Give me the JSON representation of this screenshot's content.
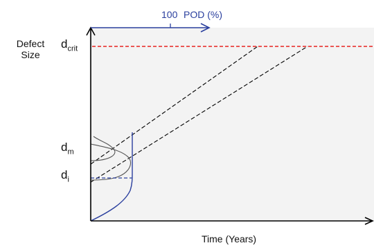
{
  "diagram": {
    "y_axis_label_line1": "Defect",
    "y_axis_label_line2": "Size",
    "x_axis_label": "Time (Years)",
    "top_axis_value": "100",
    "top_axis_label": "POD (%)",
    "d_crit": {
      "base": "d",
      "sub": "crit"
    },
    "d_m": {
      "base": "d",
      "sub": "m"
    },
    "d_i": {
      "base": "d",
      "sub": "i"
    }
  },
  "colors": {
    "plot_background": "#f3f3f3",
    "axis": "#000000",
    "critical_line": "#e8231f",
    "pod_blue": "#2a3f9e",
    "growth_lines": "#000000"
  }
}
